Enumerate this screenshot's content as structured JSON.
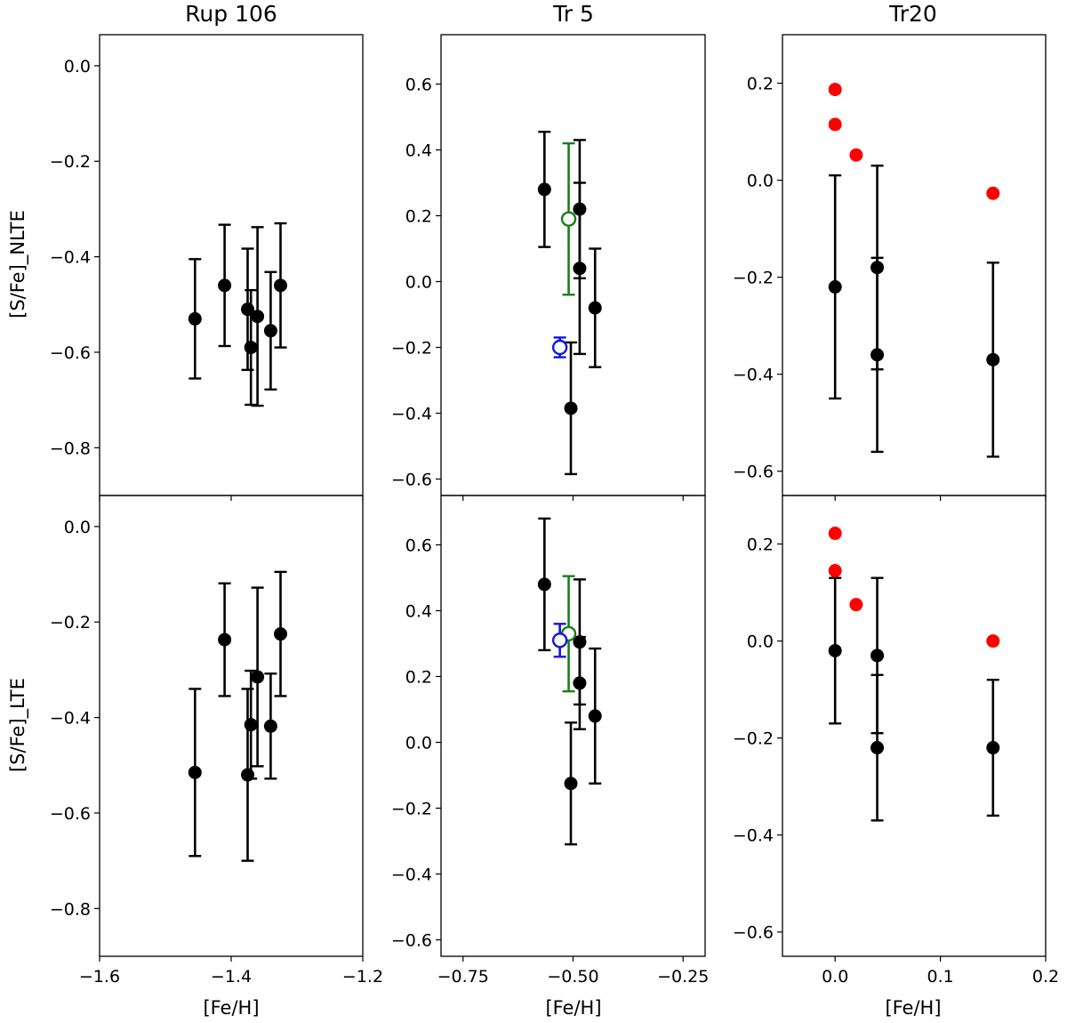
{
  "figure": {
    "xlabel": "[Fe/H]",
    "row_ylabels": [
      "[S/Fe]_NLTE",
      "[S/Fe]_LTE"
    ]
  },
  "chart_data": [
    {
      "type": "scatter",
      "title": "Rup 106",
      "xlabel": "[Fe/H]",
      "xlim": [
        -1.6,
        -1.2
      ],
      "xticks": [
        -1.6,
        -1.4,
        -1.2
      ],
      "xtick_labels": [
        "−1.6",
        "−1.4",
        "−1.2"
      ],
      "panels": [
        {
          "ylabel": "[S/Fe]_NLTE",
          "ylim": [
            -0.9,
            0.065
          ],
          "yticks": [
            0.0,
            -0.2,
            -0.4,
            -0.6,
            -0.8
          ],
          "ytick_labels": [
            "0.0",
            "−0.2",
            "−0.4",
            "−0.6",
            "−0.8"
          ],
          "series": [
            {
              "name": "stars",
              "style": "filled",
              "color": "#000000",
              "points": [
                {
                  "x": -1.455,
                  "y": -0.53,
                  "err": 0.125
                },
                {
                  "x": -1.41,
                  "y": -0.46,
                  "err": 0.127
                },
                {
                  "x": -1.375,
                  "y": -0.51,
                  "err": 0.127
                },
                {
                  "x": -1.37,
                  "y": -0.59,
                  "err": 0.12
                },
                {
                  "x": -1.36,
                  "y": -0.525,
                  "err": 0.187
                },
                {
                  "x": -1.34,
                  "y": -0.555,
                  "err": 0.123
                },
                {
                  "x": -1.325,
                  "y": -0.46,
                  "err": 0.13
                }
              ]
            }
          ]
        },
        {
          "ylabel": "[S/Fe]_LTE",
          "ylim": [
            -0.9,
            0.065
          ],
          "yticks": [
            0.0,
            -0.2,
            -0.4,
            -0.6,
            -0.8
          ],
          "ytick_labels": [
            "0.0",
            "−0.2",
            "−0.4",
            "−0.6",
            "−0.8"
          ],
          "series": [
            {
              "name": "stars",
              "style": "filled",
              "color": "#000000",
              "points": [
                {
                  "x": -1.455,
                  "y": -0.515,
                  "err": 0.175
                },
                {
                  "x": -1.41,
                  "y": -0.237,
                  "err": 0.118
                },
                {
                  "x": -1.375,
                  "y": -0.52,
                  "err": 0.18
                },
                {
                  "x": -1.37,
                  "y": -0.415,
                  "err": 0.113
                },
                {
                  "x": -1.36,
                  "y": -0.315,
                  "err": 0.187
                },
                {
                  "x": -1.34,
                  "y": -0.418,
                  "err": 0.11
                },
                {
                  "x": -1.325,
                  "y": -0.225,
                  "err": 0.13
                }
              ]
            }
          ]
        }
      ]
    },
    {
      "type": "scatter",
      "title": "Tr 5",
      "xlabel": "[Fe/H]",
      "xlim": [
        -0.8,
        -0.2
      ],
      "xticks": [
        -0.75,
        -0.5,
        -0.25
      ],
      "xtick_labels": [
        "−0.75",
        "−0.50",
        "−0.25"
      ],
      "panels": [
        {
          "ylabel": "[S/Fe]_NLTE",
          "ylim": [
            -0.65,
            0.75
          ],
          "yticks": [
            0.6,
            0.4,
            0.2,
            0.0,
            -0.2,
            -0.4,
            -0.6
          ],
          "ytick_labels": [
            "0.6",
            "0.4",
            "0.2",
            "0.0",
            "−0.2",
            "−0.4",
            "−0.6"
          ],
          "series": [
            {
              "name": "stars",
              "style": "filled",
              "color": "#000000",
              "points": [
                {
                  "x": -0.565,
                  "y": 0.28,
                  "err": 0.175
                },
                {
                  "x": -0.505,
                  "y": -0.385,
                  "err": 0.2
                },
                {
                  "x": -0.485,
                  "y": 0.22,
                  "err": 0.21
                },
                {
                  "x": -0.485,
                  "y": 0.04,
                  "err": 0.26
                },
                {
                  "x": -0.45,
                  "y": -0.08,
                  "err": 0.18
                }
              ]
            },
            {
              "name": "literature-green",
              "style": "open",
              "color": "#1a7f1a",
              "points": [
                {
                  "x": -0.51,
                  "y": 0.19,
                  "err": 0.23
                }
              ]
            },
            {
              "name": "literature-blue",
              "style": "open",
              "color": "#1515e0",
              "points": [
                {
                  "x": -0.53,
                  "y": -0.2,
                  "err": 0.03
                }
              ]
            }
          ]
        },
        {
          "ylabel": "[S/Fe]_LTE",
          "ylim": [
            -0.65,
            0.75
          ],
          "yticks": [
            0.6,
            0.4,
            0.2,
            0.0,
            -0.2,
            -0.4,
            -0.6
          ],
          "ytick_labels": [
            "0.6",
            "0.4",
            "0.2",
            "0.0",
            "−0.2",
            "−0.4",
            "−0.6"
          ],
          "series": [
            {
              "name": "stars",
              "style": "filled",
              "color": "#000000",
              "points": [
                {
                  "x": -0.565,
                  "y": 0.48,
                  "err": 0.2
                },
                {
                  "x": -0.505,
                  "y": -0.125,
                  "err": 0.185
                },
                {
                  "x": -0.485,
                  "y": 0.305,
                  "err": 0.19
                },
                {
                  "x": -0.485,
                  "y": 0.18,
                  "err": 0.14
                },
                {
                  "x": -0.45,
                  "y": 0.08,
                  "err": 0.205
                }
              ]
            },
            {
              "name": "literature-green",
              "style": "open",
              "color": "#1a7f1a",
              "points": [
                {
                  "x": -0.51,
                  "y": 0.33,
                  "err": 0.175
                }
              ]
            },
            {
              "name": "literature-blue",
              "style": "open",
              "color": "#1515e0",
              "points": [
                {
                  "x": -0.53,
                  "y": 0.31,
                  "err": 0.05
                }
              ]
            }
          ]
        }
      ]
    },
    {
      "type": "scatter",
      "title": "Tr20",
      "xlabel": "[Fe/H]",
      "xlim": [
        -0.05,
        0.2
      ],
      "xticks": [
        0.0,
        0.1,
        0.2
      ],
      "xtick_labels": [
        "0.0",
        "0.1",
        "0.2"
      ],
      "panels": [
        {
          "ylabel": "[S/Fe]_NLTE",
          "ylim": [
            -0.65,
            0.3
          ],
          "yticks": [
            0.2,
            0.0,
            -0.2,
            -0.4,
            -0.6
          ],
          "ytick_labels": [
            "0.2",
            "0.0",
            "−0.2",
            "−0.4",
            "−0.6"
          ],
          "series": [
            {
              "name": "stars",
              "style": "filled",
              "color": "#000000",
              "points": [
                {
                  "x": 0.0,
                  "y": -0.22,
                  "err": 0.23
                },
                {
                  "x": 0.04,
                  "y": -0.18,
                  "err": 0.21
                },
                {
                  "x": 0.04,
                  "y": -0.36,
                  "err": 0.2
                },
                {
                  "x": 0.15,
                  "y": -0.37,
                  "err": 0.2
                }
              ]
            },
            {
              "name": "comparison-red",
              "style": "filled-noerr",
              "color": "#ff0000",
              "points": [
                {
                  "x": 0.0,
                  "y": 0.187
                },
                {
                  "x": 0.0,
                  "y": 0.115
                },
                {
                  "x": 0.02,
                  "y": 0.052
                },
                {
                  "x": 0.15,
                  "y": -0.027
                }
              ]
            }
          ]
        },
        {
          "ylabel": "[S/Fe]_LTE",
          "ylim": [
            -0.65,
            0.3
          ],
          "yticks": [
            0.2,
            0.0,
            -0.2,
            -0.4,
            -0.6
          ],
          "ytick_labels": [
            "0.2",
            "0.0",
            "−0.2",
            "−0.4",
            "−0.6"
          ],
          "series": [
            {
              "name": "stars",
              "style": "filled",
              "color": "#000000",
              "points": [
                {
                  "x": 0.0,
                  "y": -0.02,
                  "err": 0.15
                },
                {
                  "x": 0.04,
                  "y": -0.03,
                  "err": 0.16
                },
                {
                  "x": 0.04,
                  "y": -0.22,
                  "err": 0.15
                },
                {
                  "x": 0.15,
                  "y": -0.22,
                  "err": 0.14
                }
              ]
            },
            {
              "name": "comparison-red",
              "style": "filled-noerr",
              "color": "#ff0000",
              "points": [
                {
                  "x": 0.0,
                  "y": 0.222
                },
                {
                  "x": 0.0,
                  "y": 0.145
                },
                {
                  "x": 0.02,
                  "y": 0.075
                },
                {
                  "x": 0.15,
                  "y": 0.0
                }
              ]
            }
          ]
        }
      ]
    }
  ]
}
